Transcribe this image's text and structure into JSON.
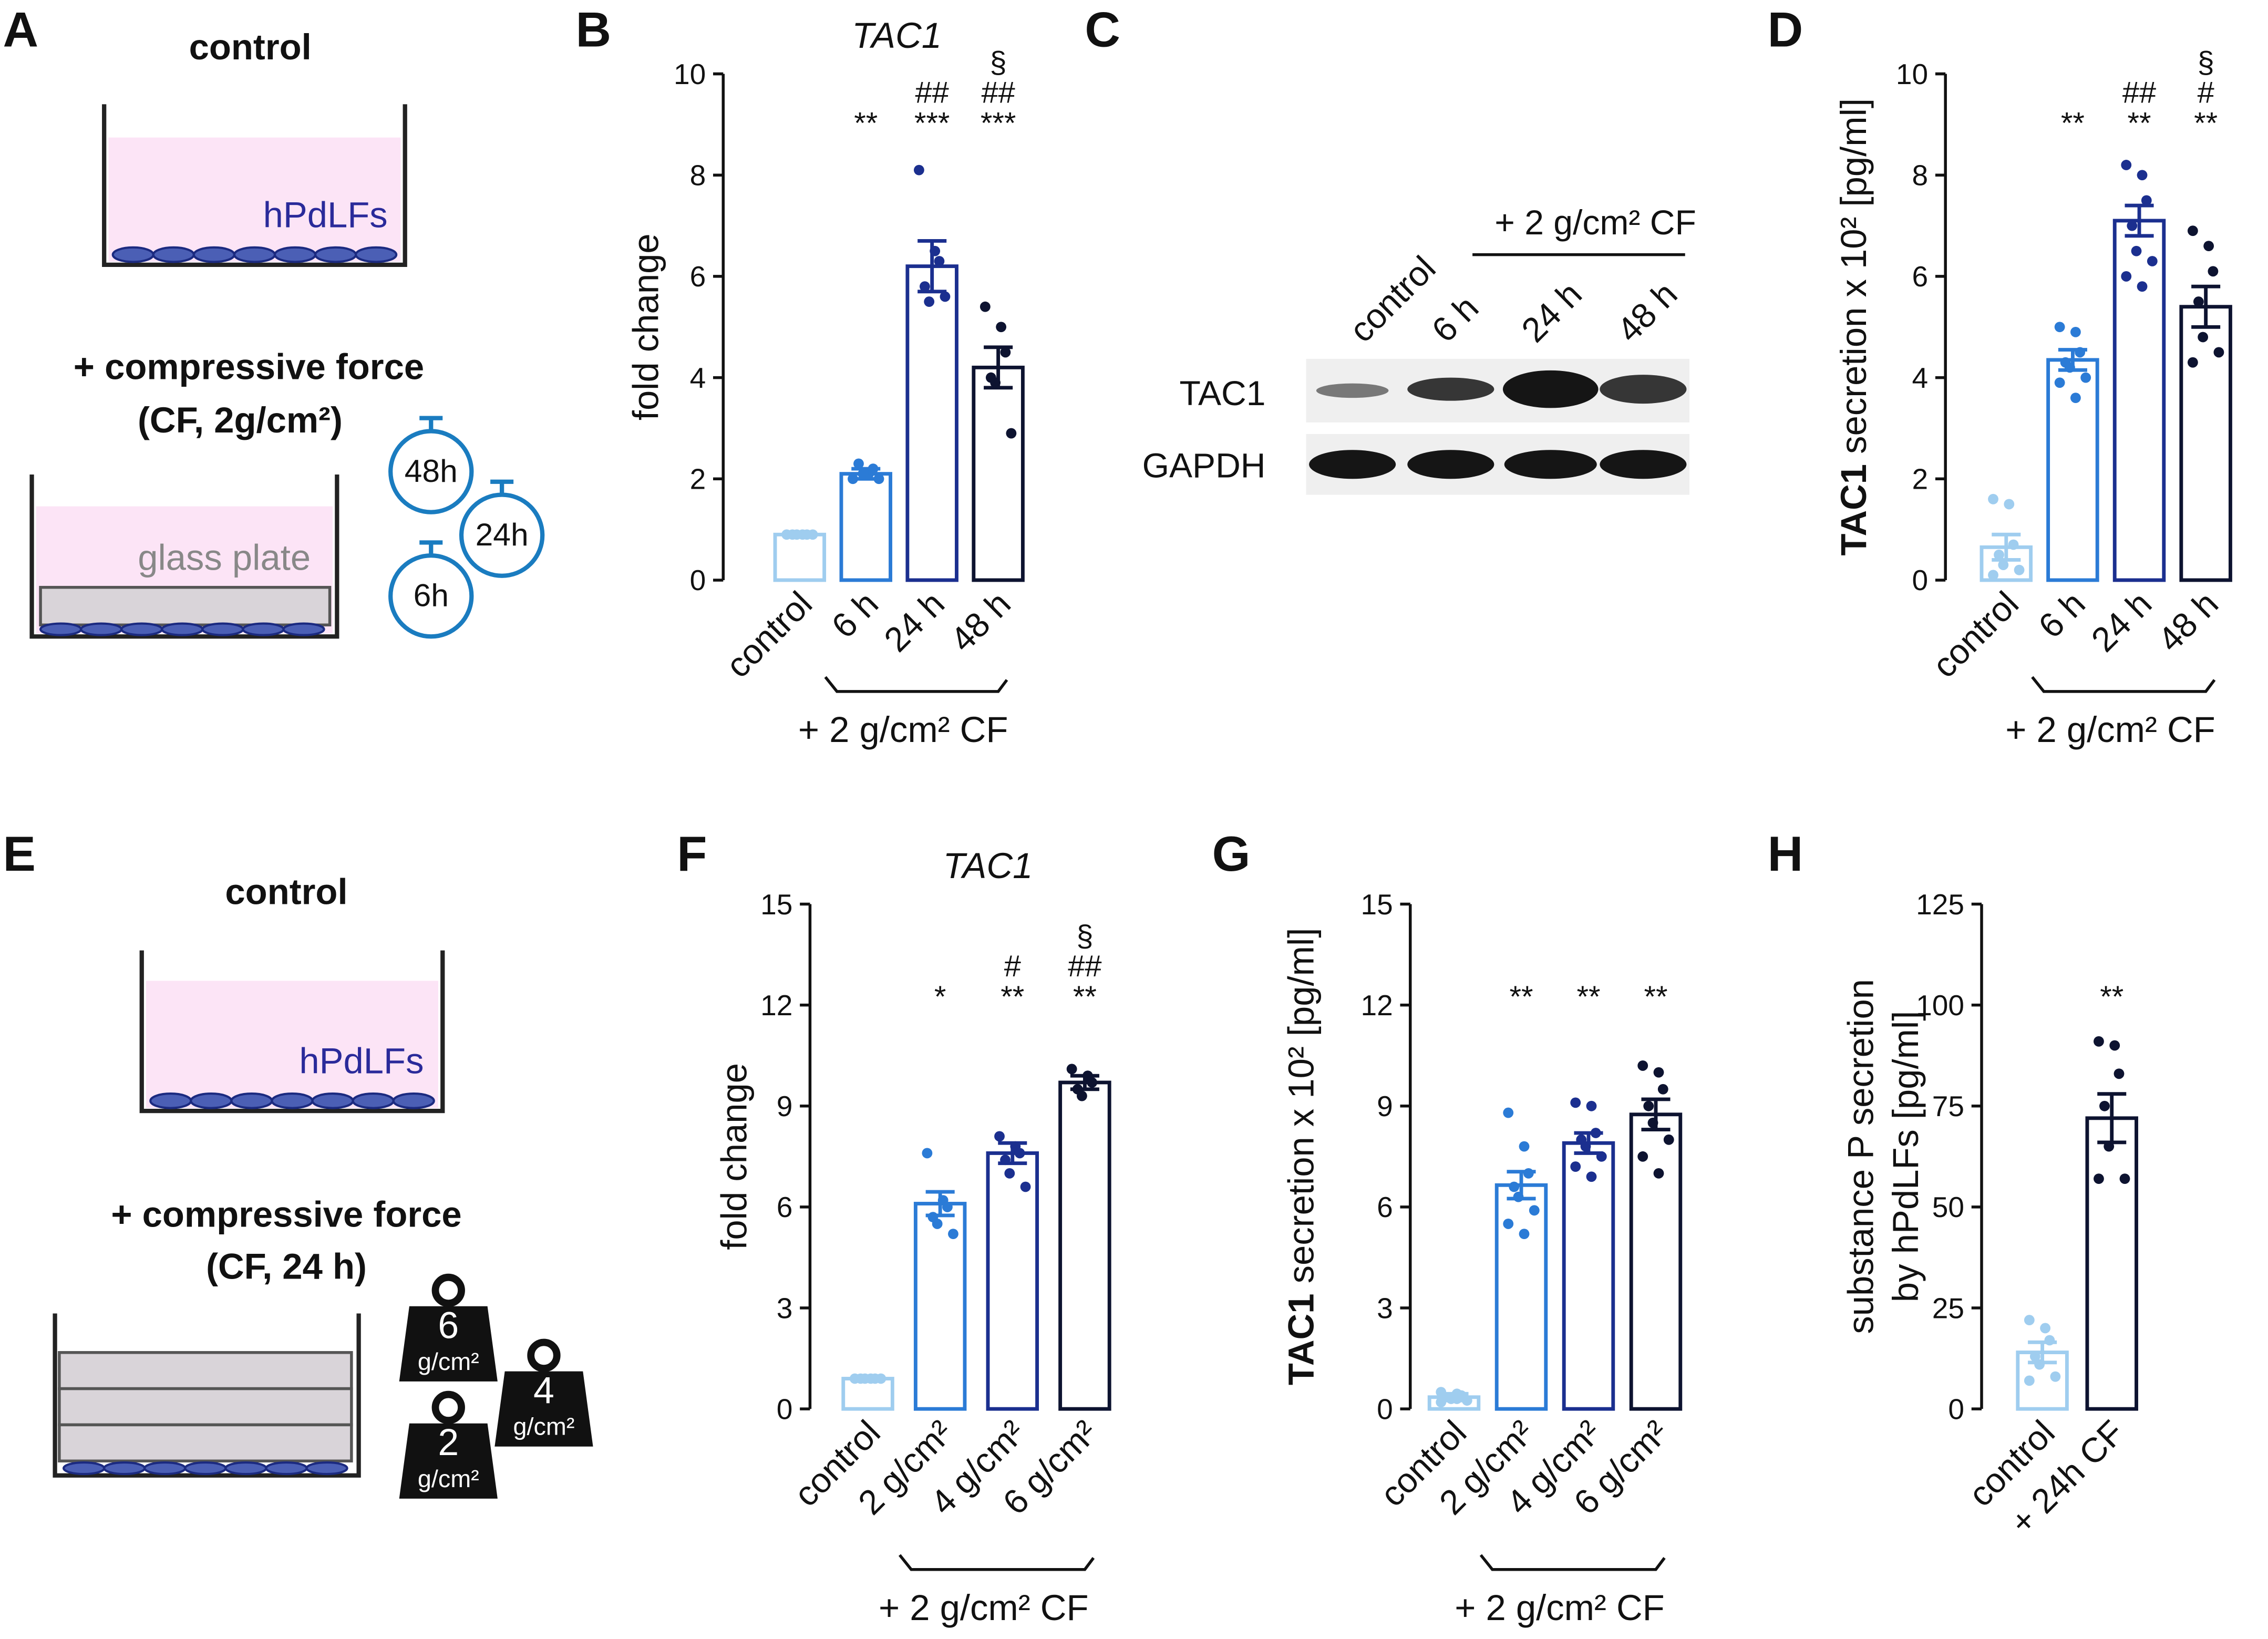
{
  "panels": {
    "A": {
      "label": "A",
      "control": "control",
      "cells": "hPdLFs",
      "force": "+ compressive force",
      "force_detail": "(CF, 2g/cm²)",
      "plate": "glass plate",
      "timers": [
        "48h",
        "24h",
        "6h"
      ]
    },
    "C": {
      "label": "C",
      "lanes": [
        "control",
        "6 h",
        "24 h",
        "48 h"
      ],
      "group_label": "+ 2 g/cm² CF",
      "rows": [
        "TAC1",
        "GAPDH"
      ]
    },
    "E": {
      "label": "E",
      "control": "control",
      "cells": "hPdLFs",
      "force": "+ compressive force",
      "force_detail": "(CF, 24 h)",
      "weights": [
        [
          "6",
          "g/cm²"
        ],
        [
          "4",
          "g/cm²"
        ],
        [
          "2",
          "g/cm²"
        ]
      ]
    }
  },
  "chart_data": [
    {
      "type": "bar",
      "panel_label": "B",
      "title": "TAC1",
      "ylabel": [
        [
          {
            "text": "fold change",
            "bold": false
          }
        ]
      ],
      "categories": [
        "control",
        "6 h",
        "24 h",
        "48 h"
      ],
      "colors": [
        "#9fcdef",
        "#2b7bd6",
        "#1b2f8f",
        "#0d1330"
      ],
      "values": [
        0.9,
        2.1,
        6.2,
        4.2
      ],
      "errors": [
        0.02,
        0.1,
        0.5,
        0.4
      ],
      "points": [
        [
          0.9,
          0.9,
          0.9,
          0.9,
          0.9,
          0.9
        ],
        [
          2.0,
          2.1,
          2.2,
          2.3,
          2.1,
          2.0
        ],
        [
          8.1,
          6.5,
          6.3,
          5.8,
          5.5,
          5.6
        ],
        [
          5.4,
          5.0,
          4.5,
          4.0,
          3.9,
          2.9
        ]
      ],
      "annotations": [
        [],
        [
          "**"
        ],
        [
          "***",
          "##"
        ],
        [
          "***",
          "##",
          "§"
        ]
      ],
      "group": [
        1,
        3
      ],
      "group_label": "+ 2 g/cm² CF",
      "ylim": [
        0,
        10
      ],
      "yticks": [
        0,
        2,
        4,
        6,
        8,
        10
      ]
    },
    {
      "type": "bar",
      "panel_label": "D",
      "ylabel": [
        [
          {
            "text": "TAC1",
            "bold": true
          },
          {
            "text": " secretion x 10² [pg/ml]",
            "bold": false
          }
        ]
      ],
      "categories": [
        "control",
        "6 h",
        "24 h",
        "48 h"
      ],
      "colors": [
        "#9fcdef",
        "#2b7bd6",
        "#1b2f8f",
        "#0d1330"
      ],
      "values": [
        0.65,
        4.35,
        7.1,
        5.4
      ],
      "errors": [
        0.25,
        0.2,
        0.3,
        0.4
      ],
      "points": [
        [
          1.6,
          1.5,
          0.7,
          0.5,
          0.3,
          0.2,
          0.1
        ],
        [
          5.0,
          4.9,
          4.5,
          4.3,
          4.2,
          4.0,
          3.9,
          3.6
        ],
        [
          8.2,
          8.0,
          7.5,
          7.0,
          6.5,
          6.3,
          6.0,
          5.8
        ],
        [
          6.9,
          6.6,
          6.1,
          5.5,
          4.8,
          4.5,
          4.3
        ]
      ],
      "annotations": [
        [],
        [
          "**"
        ],
        [
          "**",
          "##"
        ],
        [
          "**",
          "#",
          "§"
        ]
      ],
      "group": [
        1,
        3
      ],
      "group_label": "+ 2 g/cm² CF",
      "ylim": [
        0,
        10
      ],
      "yticks": [
        0,
        2,
        4,
        6,
        8,
        10
      ]
    },
    {
      "type": "bar",
      "panel_label": "F",
      "title": "TAC1",
      "ylabel": [
        [
          {
            "text": "fold change",
            "bold": false
          }
        ]
      ],
      "categories": [
        "control",
        "2 g/cm²",
        "4 g/cm²",
        "6 g/cm²"
      ],
      "colors": [
        "#9fcdef",
        "#2b7bd6",
        "#1b2f8f",
        "#0d1330"
      ],
      "values": [
        0.9,
        6.1,
        7.6,
        9.7
      ],
      "errors": [
        0.02,
        0.35,
        0.3,
        0.2
      ],
      "points": [
        [
          0.9,
          0.9,
          0.9,
          0.9,
          0.9,
          0.9
        ],
        [
          7.6,
          6.2,
          6.0,
          5.7,
          5.5,
          5.2
        ],
        [
          8.1,
          7.8,
          7.6,
          7.4,
          7.0,
          6.6
        ],
        [
          10.1,
          9.9,
          9.7,
          9.5,
          9.3
        ]
      ],
      "annotations": [
        [],
        [
          "*"
        ],
        [
          "**",
          "#"
        ],
        [
          "**",
          "##",
          "§"
        ]
      ],
      "group": [
        1,
        3
      ],
      "group_label": "+ 2 g/cm² CF",
      "ylim": [
        0,
        15
      ],
      "yticks": [
        0,
        3,
        6,
        9,
        12,
        15
      ]
    },
    {
      "type": "bar",
      "panel_label": "G",
      "ylabel": [
        [
          {
            "text": "TAC1",
            "bold": true
          },
          {
            "text": " secretion x 10² [pg/ml]",
            "bold": false
          }
        ]
      ],
      "categories": [
        "control",
        "2 g/cm²",
        "4 g/cm²",
        "6 g/cm²"
      ],
      "colors": [
        "#9fcdef",
        "#2b7bd6",
        "#1b2f8f",
        "#0d1330"
      ],
      "values": [
        0.35,
        6.65,
        7.9,
        8.75
      ],
      "errors": [
        0.1,
        0.4,
        0.3,
        0.45
      ],
      "points": [
        [
          0.5,
          0.45,
          0.4,
          0.35,
          0.3,
          0.25,
          0.2,
          0.3
        ],
        [
          8.8,
          7.8,
          7.0,
          6.6,
          6.3,
          5.9,
          5.5,
          5.2
        ],
        [
          9.1,
          9.0,
          8.2,
          8.0,
          7.8,
          7.5,
          7.2,
          6.9
        ],
        [
          10.2,
          10.0,
          9.5,
          9.0,
          8.5,
          8.0,
          7.5,
          7.0
        ]
      ],
      "annotations": [
        [],
        [
          "**"
        ],
        [
          "**"
        ],
        [
          "**"
        ]
      ],
      "group": [
        1,
        3
      ],
      "group_label": "+ 2 g/cm² CF",
      "ylim": [
        0,
        15
      ],
      "yticks": [
        0,
        3,
        6,
        9,
        12,
        15
      ]
    },
    {
      "type": "bar",
      "panel_label": "H",
      "ylabel": [
        [
          {
            "text": "substance P secretion",
            "bold": false
          }
        ],
        [
          {
            "text": "by hPdLFs [pg/ml]",
            "bold": false
          }
        ]
      ],
      "categories": [
        "control",
        "+ 24h CF"
      ],
      "colors": [
        "#9fcdef",
        "#0d1330"
      ],
      "values": [
        14,
        72
      ],
      "errors": [
        2.5,
        6
      ],
      "points": [
        [
          22,
          20,
          17,
          13,
          11,
          8,
          7
        ],
        [
          91,
          90,
          83,
          75,
          65,
          57,
          57
        ]
      ],
      "annotations": [
        [],
        [
          "**"
        ]
      ],
      "ylim": [
        0,
        125
      ],
      "yticks": [
        0,
        25,
        50,
        75,
        100,
        125
      ]
    }
  ]
}
